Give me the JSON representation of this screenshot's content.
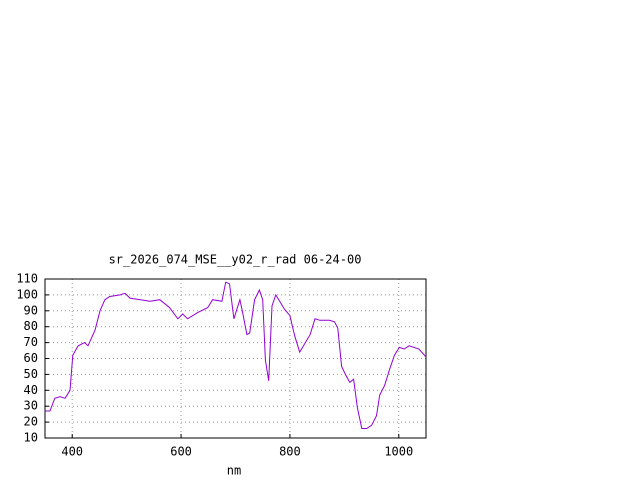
{
  "chart_data": {
    "type": "line",
    "title": "sr_2026_074_MSE__y02_r_rad 06-24-00",
    "x_label": "nm",
    "x": [
      350,
      359,
      368,
      378,
      387,
      396,
      401,
      411,
      423,
      429,
      442,
      451,
      460,
      469,
      488,
      497,
      506,
      525,
      543,
      561,
      579,
      594,
      603,
      612,
      631,
      649,
      658,
      675,
      682,
      689,
      697,
      708,
      713,
      721,
      726,
      735,
      744,
      750,
      755,
      761,
      767,
      774,
      790,
      800,
      809,
      818,
      837,
      846,
      855,
      873,
      882,
      888,
      895,
      902,
      910,
      917,
      924,
      932,
      941,
      950,
      959,
      965,
      974,
      983,
      992,
      1001,
      1010,
      1019,
      1037,
      1050
    ],
    "series": [
      {
        "color": "#9400d3",
        "values": [
          27,
          27,
          35,
          36,
          35,
          40,
          62,
          68,
          70,
          68,
          78,
          90,
          97,
          99,
          100,
          101,
          98,
          97,
          96,
          97,
          92,
          85,
          88,
          85,
          89,
          92,
          97,
          96,
          108,
          107,
          85,
          97,
          89,
          75,
          76,
          97,
          103,
          97,
          59,
          46,
          93,
          100,
          91,
          87,
          74,
          64,
          75,
          85,
          84,
          84,
          83,
          79,
          55,
          50,
          45,
          47,
          29,
          16,
          16,
          18,
          24,
          37,
          43,
          53,
          62,
          67,
          66,
          68,
          66,
          61
        ]
      }
    ],
    "xlim": [
      350,
      1050
    ],
    "xticks": [
      400,
      600,
      800,
      1000
    ],
    "ylim": [
      10,
      110
    ],
    "yticks": [
      10,
      20,
      30,
      40,
      50,
      60,
      70,
      80,
      90,
      100,
      110
    ],
    "grid": true
  }
}
